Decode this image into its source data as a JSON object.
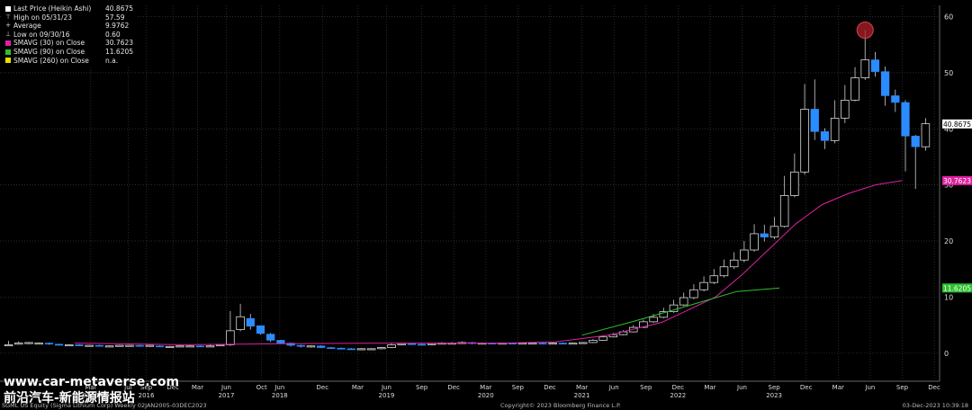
{
  "legend": {
    "items": [
      {
        "label": "Last Price (Heikin Ashi)",
        "value": "40.8675",
        "color": "#ffffff",
        "glyph": "box"
      },
      {
        "label": "High on 05/31/23",
        "value": "57.59",
        "color": "#dddddd",
        "glyph": "⊤"
      },
      {
        "label": "Average",
        "value": "9.9762",
        "color": "#dddddd",
        "glyph": "+"
      },
      {
        "label": "Low on 09/30/16",
        "value": "0.60",
        "color": "#dddddd",
        "glyph": "⊥"
      },
      {
        "label": "SMAVG (30)  on Close",
        "value": "30.7623",
        "color": "#e020a0",
        "glyph": "box"
      },
      {
        "label": "SMAVG (90)  on Close",
        "value": "11.6205",
        "color": "#2ec02e",
        "glyph": "box"
      },
      {
        "label": "SMAVG (260)  on Close",
        "value": "n.a.",
        "color": "#e8e000",
        "glyph": "box"
      }
    ]
  },
  "footer": {
    "left": "SGML US Equity (Sigma Lithium Corp)  Weekly 02JAN2005-03DEC2023",
    "center": "Copyright© 2023 Bloomberg Finance L.P.",
    "right": "03-Dec-2023 10:39:18"
  },
  "watermark": {
    "line1": "www.car-metaverse.com",
    "line2": "前沿汽车-新能源情报站"
  },
  "colors": {
    "background": "#000000",
    "grid": "#3a3a3a",
    "up_candle_edge": "#d8d8d8",
    "down_candle_fill": "#2a8cff",
    "sma30": "#e020a0",
    "sma90": "#2ec02e",
    "high_marker": "#b0202a"
  },
  "chart_data": {
    "type": "candlestick",
    "y_ticks": [
      0,
      10,
      20,
      30,
      40,
      50,
      60
    ],
    "ylim": [
      -5,
      62
    ],
    "price_tags": [
      {
        "text": "40.8675",
        "value": 40.8675,
        "bg": "#ffffff",
        "fg": "#000000"
      },
      {
        "text": "30.7623",
        "value": 30.7623,
        "bg": "#e020a0",
        "fg": "#ffffff"
      },
      {
        "text": "11.6205",
        "value": 11.6205,
        "bg": "#2ec02e",
        "fg": "#ffffff"
      }
    ],
    "x_labels": [
      {
        "t": 2015.15,
        "label": "Mar",
        "year": "2015"
      },
      {
        "t": 2015.5,
        "label": "Jul",
        "year": ""
      },
      {
        "t": 2015.67,
        "label": "Sep",
        "year": "2016"
      },
      {
        "t": 2015.92,
        "label": "Dec",
        "year": ""
      },
      {
        "t": 2016.15,
        "label": "Mar",
        "year": ""
      },
      {
        "t": 2016.42,
        "label": "Jun",
        "year": "2017"
      },
      {
        "t": 2016.75,
        "label": "Oct",
        "year": ""
      },
      {
        "t": 2016.92,
        "label": "Jun",
        "year": "2018"
      },
      {
        "t": 2017.32,
        "label": "Dec",
        "year": ""
      },
      {
        "t": 2017.65,
        "label": "Mar",
        "year": ""
      },
      {
        "t": 2017.92,
        "label": "Jun",
        "year": "2019"
      },
      {
        "t": 2018.25,
        "label": "Sep",
        "year": ""
      },
      {
        "t": 2018.55,
        "label": "Dec",
        "year": ""
      },
      {
        "t": 2018.85,
        "label": "Mar",
        "year": "2020"
      },
      {
        "t": 2019.15,
        "label": "Sep",
        "year": ""
      },
      {
        "t": 2019.45,
        "label": "Dec",
        "year": ""
      },
      {
        "t": 2019.75,
        "label": "Mar",
        "year": "2021"
      },
      {
        "t": 2020.05,
        "label": "Jun",
        "year": ""
      },
      {
        "t": 2020.35,
        "label": "Sep",
        "year": ""
      },
      {
        "t": 2020.65,
        "label": "Dec",
        "year": "2022"
      },
      {
        "t": 2020.95,
        "label": "Mar",
        "year": ""
      },
      {
        "t": 2021.25,
        "label": "Jun",
        "year": ""
      },
      {
        "t": 2021.55,
        "label": "Sep",
        "year": "2023"
      },
      {
        "t": 2021.85,
        "label": "Dec",
        "year": ""
      },
      {
        "t": 2022.15,
        "label": "Mar",
        "year": ""
      },
      {
        "t": 2022.45,
        "label": "Jun",
        "year": ""
      },
      {
        "t": 2022.75,
        "label": "Sep",
        "year": ""
      },
      {
        "t": 2023.05,
        "label": "Dec",
        "year": ""
      }
    ],
    "x_axis": {
      "labels": [
        "Mar",
        "Jul",
        "Sep",
        "Dec",
        "Mar",
        "Jun",
        "Oct",
        "Jun",
        "Sep",
        "Dec",
        "Mar",
        "Jun",
        "Sep",
        "Dec",
        "Mar",
        "Jun",
        "Sep",
        "Dec",
        "Mar",
        "Jun",
        "Sep",
        "Dec",
        "Mar",
        "Jun",
        "Sep",
        "Dec",
        "Mar",
        "Jun",
        "Sep",
        "Dec",
        "Mar",
        "Jun",
        "Sep",
        "Dec",
        "Mar",
        "Jun",
        "Sep",
        "Dec"
      ],
      "years": [
        "2015",
        "2016",
        "2017",
        "2018",
        "2019",
        "2020",
        "2021",
        "2022",
        "2023"
      ]
    },
    "high_marker": {
      "label": "High on 05/31/23",
      "value": 57.59
    },
    "candles": [
      [
        1.5,
        1.5,
        2.2,
        1.4
      ],
      [
        1.6,
        1.8,
        2.1,
        1.5
      ],
      [
        1.8,
        1.9,
        2.0,
        1.6
      ],
      [
        1.7,
        1.8,
        1.9,
        1.6
      ],
      [
        1.8,
        1.6,
        1.9,
        1.5
      ],
      [
        1.6,
        1.5,
        1.7,
        1.4
      ],
      [
        1.5,
        1.5,
        1.6,
        1.3
      ],
      [
        1.5,
        1.4,
        1.6,
        1.3
      ],
      [
        1.4,
        1.4,
        1.5,
        1.3
      ],
      [
        1.4,
        1.3,
        1.5,
        1.2
      ],
      [
        1.3,
        1.3,
        1.4,
        1.2
      ],
      [
        1.3,
        1.4,
        1.5,
        1.2
      ],
      [
        1.4,
        1.4,
        1.5,
        1.3
      ],
      [
        1.4,
        1.3,
        1.5,
        1.2
      ],
      [
        1.3,
        1.4,
        1.5,
        1.2
      ],
      [
        1.3,
        1.2,
        1.4,
        1.1
      ],
      [
        1.2,
        1.2,
        1.3,
        1.1
      ],
      [
        1.2,
        1.3,
        1.4,
        1.1
      ],
      [
        1.3,
        1.3,
        1.4,
        1.2
      ],
      [
        1.3,
        1.2,
        1.4,
        1.1
      ],
      [
        1.2,
        1.3,
        1.5,
        1.1
      ],
      [
        1.4,
        1.5,
        1.6,
        1.3
      ],
      [
        1.5,
        4.0,
        7.5,
        1.3
      ],
      [
        4.2,
        6.5,
        8.8,
        3.9
      ],
      [
        6.2,
        4.8,
        7.0,
        4.2
      ],
      [
        4.9,
        3.5,
        4.7,
        3.3
      ],
      [
        3.4,
        2.3,
        3.6,
        2.0
      ],
      [
        2.3,
        1.8,
        2.4,
        1.6
      ],
      [
        1.8,
        1.4,
        1.9,
        1.2
      ],
      [
        1.4,
        1.2,
        1.5,
        1.0
      ],
      [
        1.2,
        1.3,
        1.4,
        1.0
      ],
      [
        1.3,
        1.0,
        1.4,
        0.9
      ],
      [
        1.0,
        0.9,
        1.1,
        0.8
      ],
      [
        0.9,
        0.8,
        1.0,
        0.7
      ],
      [
        0.8,
        0.7,
        0.9,
        0.6
      ],
      [
        0.7,
        0.8,
        0.9,
        0.6
      ],
      [
        0.8,
        0.8,
        0.9,
        0.7
      ],
      [
        0.8,
        1.0,
        1.1,
        0.7
      ],
      [
        1.0,
        1.5,
        1.8,
        0.9
      ],
      [
        1.5,
        1.7,
        1.9,
        1.4
      ],
      [
        1.7,
        1.6,
        1.8,
        1.5
      ],
      [
        1.6,
        1.5,
        1.7,
        1.4
      ],
      [
        1.5,
        1.7,
        1.8,
        1.4
      ],
      [
        1.7,
        1.8,
        2.0,
        1.6
      ],
      [
        1.8,
        1.8,
        2.0,
        1.7
      ],
      [
        1.8,
        1.9,
        2.1,
        1.7
      ],
      [
        1.9,
        1.7,
        2.0,
        1.6
      ],
      [
        1.7,
        1.8,
        1.9,
        1.6
      ],
      [
        1.8,
        1.7,
        1.9,
        1.6
      ],
      [
        1.7,
        1.8,
        1.9,
        1.6
      ],
      [
        1.8,
        1.7,
        1.9,
        1.6
      ],
      [
        1.7,
        1.8,
        1.9,
        1.6
      ],
      [
        1.8,
        1.8,
        1.9,
        1.7
      ],
      [
        1.8,
        1.7,
        1.9,
        1.6
      ],
      [
        1.7,
        1.8,
        1.9,
        1.6
      ],
      [
        1.8,
        1.7,
        1.9,
        1.6
      ],
      [
        1.7,
        1.8,
        1.9,
        1.6
      ],
      [
        1.8,
        1.9,
        2.0,
        1.7
      ],
      [
        1.9,
        2.3,
        2.5,
        1.8
      ],
      [
        2.3,
        2.9,
        3.2,
        2.2
      ],
      [
        2.9,
        3.3,
        3.6,
        2.8
      ],
      [
        3.3,
        3.8,
        4.1,
        3.2
      ],
      [
        3.8,
        4.6,
        5.0,
        3.7
      ],
      [
        4.6,
        5.6,
        6.0,
        4.5
      ],
      [
        5.6,
        6.4,
        7.0,
        5.4
      ],
      [
        6.4,
        7.4,
        8.1,
        6.2
      ],
      [
        7.4,
        8.6,
        9.5,
        7.2
      ],
      [
        8.6,
        9.9,
        10.8,
        8.4
      ],
      [
        9.9,
        11.3,
        12.3,
        9.6
      ],
      [
        11.3,
        12.6,
        13.7,
        11.0
      ],
      [
        12.6,
        13.8,
        15.0,
        12.3
      ],
      [
        13.8,
        15.4,
        16.7,
        13.5
      ],
      [
        15.4,
        16.6,
        18.0,
        15.0
      ],
      [
        16.6,
        18.4,
        20.0,
        16.2
      ],
      [
        18.4,
        21.3,
        23.0,
        18.1
      ],
      [
        21.3,
        20.7,
        22.9,
        19.9
      ],
      [
        20.7,
        22.6,
        24.3,
        20.3
      ],
      [
        22.6,
        28.1,
        31.6,
        22.4
      ],
      [
        28.1,
        32.3,
        35.6,
        27.8
      ],
      [
        32.3,
        43.5,
        48.0,
        31.8
      ],
      [
        43.5,
        39.5,
        48.8,
        38.0
      ],
      [
        39.5,
        37.9,
        40.1,
        36.4
      ],
      [
        37.9,
        41.9,
        45.1,
        37.4
      ],
      [
        41.9,
        45.1,
        47.8,
        41.0
      ],
      [
        45.1,
        49.1,
        51.0,
        44.9
      ],
      [
        49.1,
        52.3,
        57.6,
        48.7
      ],
      [
        52.3,
        50.2,
        53.7,
        49.3
      ],
      [
        50.2,
        45.9,
        51.1,
        44.1
      ],
      [
        45.9,
        44.7,
        47.0,
        43.0
      ],
      [
        44.7,
        38.7,
        45.1,
        32.4
      ],
      [
        38.7,
        36.8,
        38.9,
        29.3
      ],
      [
        36.8,
        40.9,
        41.9,
        36.1
      ]
    ],
    "sma30": [
      [
        2015.0,
        1.8
      ],
      [
        2016.0,
        1.5
      ],
      [
        2017.0,
        1.7
      ],
      [
        2018.0,
        1.8
      ],
      [
        2019.0,
        1.8
      ],
      [
        2019.5,
        2.0
      ],
      [
        2020.0,
        3.2
      ],
      [
        2020.5,
        5.5
      ],
      [
        2021.0,
        10.0
      ],
      [
        2021.25,
        14.0
      ],
      [
        2021.5,
        18.5
      ],
      [
        2021.75,
        23.0
      ],
      [
        2022.0,
        26.5
      ],
      [
        2022.25,
        28.5
      ],
      [
        2022.5,
        30.0
      ],
      [
        2022.75,
        30.8
      ]
    ],
    "sma90": [
      [
        2019.75,
        3.2
      ],
      [
        2020.2,
        5.5
      ],
      [
        2020.7,
        8.2
      ],
      [
        2021.2,
        11.0
      ],
      [
        2021.6,
        11.6
      ]
    ],
    "t_start": 2014.3,
    "t_end": 2023.1
  }
}
